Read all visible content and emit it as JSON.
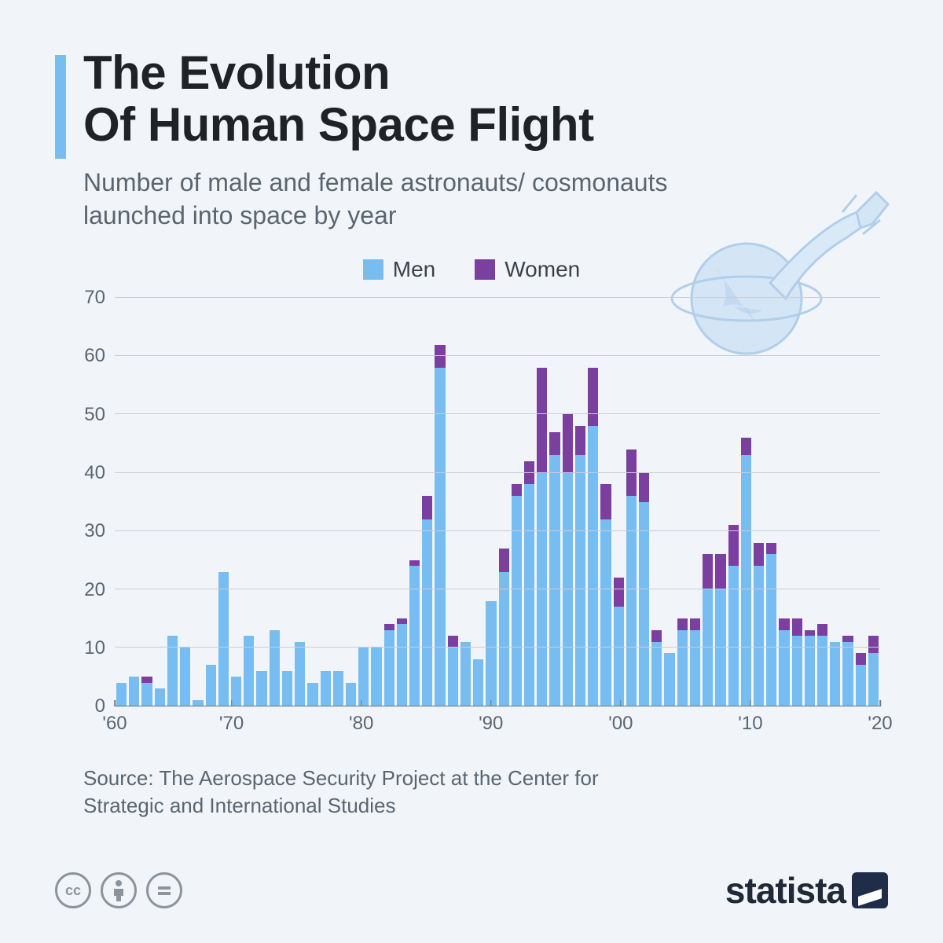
{
  "title_line1": "The Evolution",
  "title_line2": "Of Human Space Flight",
  "subtitle": "Number of male and female astronauts/ cosmonauts launched into space by year",
  "legend": {
    "men": "Men",
    "women": "Women"
  },
  "colors": {
    "men": "#78bdf1",
    "women": "#7b3fa0",
    "background": "#f1f5f9",
    "grid": "#c9ced4",
    "axis": "#6b7680",
    "text_dark": "#1f2328",
    "text_muted": "#5a6570"
  },
  "chart": {
    "type": "stacked-bar",
    "ylim": [
      0,
      70
    ],
    "ytick_step": 10,
    "yticks": [
      0,
      10,
      20,
      30,
      40,
      50,
      60,
      70
    ],
    "x_start": 1961,
    "x_end": 2020,
    "x_decade_labels": [
      "'60",
      "'70",
      "'80",
      "'90",
      "'00",
      "'10",
      "'20"
    ],
    "x_decade_years": [
      1960,
      1970,
      1980,
      1990,
      2000,
      2010,
      2020
    ],
    "data": [
      {
        "year": 1961,
        "men": 4,
        "women": 0
      },
      {
        "year": 1962,
        "men": 5,
        "women": 0
      },
      {
        "year": 1963,
        "men": 4,
        "women": 1
      },
      {
        "year": 1964,
        "men": 3,
        "women": 0
      },
      {
        "year": 1965,
        "men": 12,
        "women": 0
      },
      {
        "year": 1966,
        "men": 10,
        "women": 0
      },
      {
        "year": 1967,
        "men": 1,
        "women": 0
      },
      {
        "year": 1968,
        "men": 7,
        "women": 0
      },
      {
        "year": 1969,
        "men": 23,
        "women": 0
      },
      {
        "year": 1970,
        "men": 5,
        "women": 0
      },
      {
        "year": 1971,
        "men": 12,
        "women": 0
      },
      {
        "year": 1972,
        "men": 6,
        "women": 0
      },
      {
        "year": 1973,
        "men": 13,
        "women": 0
      },
      {
        "year": 1974,
        "men": 6,
        "women": 0
      },
      {
        "year": 1975,
        "men": 11,
        "women": 0
      },
      {
        "year": 1976,
        "men": 4,
        "women": 0
      },
      {
        "year": 1977,
        "men": 6,
        "women": 0
      },
      {
        "year": 1978,
        "men": 6,
        "women": 0
      },
      {
        "year": 1979,
        "men": 4,
        "women": 0
      },
      {
        "year": 1980,
        "men": 10,
        "women": 0
      },
      {
        "year": 1981,
        "men": 10,
        "women": 0
      },
      {
        "year": 1982,
        "men": 13,
        "women": 1
      },
      {
        "year": 1983,
        "men": 14,
        "women": 1
      },
      {
        "year": 1984,
        "men": 24,
        "women": 1
      },
      {
        "year": 1985,
        "men": 32,
        "women": 4
      },
      {
        "year": 1986,
        "men": 58,
        "women": 4
      },
      {
        "year": 1987,
        "men": 10,
        "women": 2
      },
      {
        "year": 1988,
        "men": 11,
        "women": 0
      },
      {
        "year": 1989,
        "men": 8,
        "women": 0
      },
      {
        "year": 1990,
        "men": 18,
        "women": 0
      },
      {
        "year": 1991,
        "men": 23,
        "women": 4
      },
      {
        "year": 1992,
        "men": 36,
        "women": 2
      },
      {
        "year": 1993,
        "men": 38,
        "women": 4
      },
      {
        "year": 1994,
        "men": 40,
        "women": 18
      },
      {
        "year": 1995,
        "men": 43,
        "women": 4
      },
      {
        "year": 1996,
        "men": 40,
        "women": 10
      },
      {
        "year": 1997,
        "men": 43,
        "women": 5
      },
      {
        "year": 1998,
        "men": 48,
        "women": 10
      },
      {
        "year": 1999,
        "men": 32,
        "women": 6
      },
      {
        "year": 2000,
        "men": 17,
        "women": 5
      },
      {
        "year": 2001,
        "men": 36,
        "women": 8
      },
      {
        "year": 2002,
        "men": 35,
        "women": 5
      },
      {
        "year": 2003,
        "men": 11,
        "women": 2
      },
      {
        "year": 2004,
        "men": 9,
        "women": 0
      },
      {
        "year": 2005,
        "men": 13,
        "women": 2
      },
      {
        "year": 2006,
        "men": 13,
        "women": 2
      },
      {
        "year": 2007,
        "men": 20,
        "women": 6
      },
      {
        "year": 2008,
        "men": 20,
        "women": 6
      },
      {
        "year": 2009,
        "men": 24,
        "women": 7
      },
      {
        "year": 2010,
        "men": 43,
        "women": 3
      },
      {
        "year": 2011,
        "men": 24,
        "women": 4
      },
      {
        "year": 2012,
        "men": 26,
        "women": 2
      },
      {
        "year": 2013,
        "men": 13,
        "women": 2
      },
      {
        "year": 2014,
        "men": 12,
        "women": 3
      },
      {
        "year": 2015,
        "men": 12,
        "women": 1
      },
      {
        "year": 2016,
        "men": 12,
        "women": 2
      },
      {
        "year": 2017,
        "men": 11,
        "women": 0
      },
      {
        "year": 2018,
        "men": 11,
        "women": 1
      },
      {
        "year": 2019,
        "men": 7,
        "women": 2
      },
      {
        "year": 2020,
        "men": 9,
        "women": 3
      }
    ]
  },
  "source": "Source: The Aerospace Security Project at the Center for Strategic and International Studies",
  "brand": "statista",
  "cc_icons": [
    "cc",
    "by",
    "nd"
  ]
}
